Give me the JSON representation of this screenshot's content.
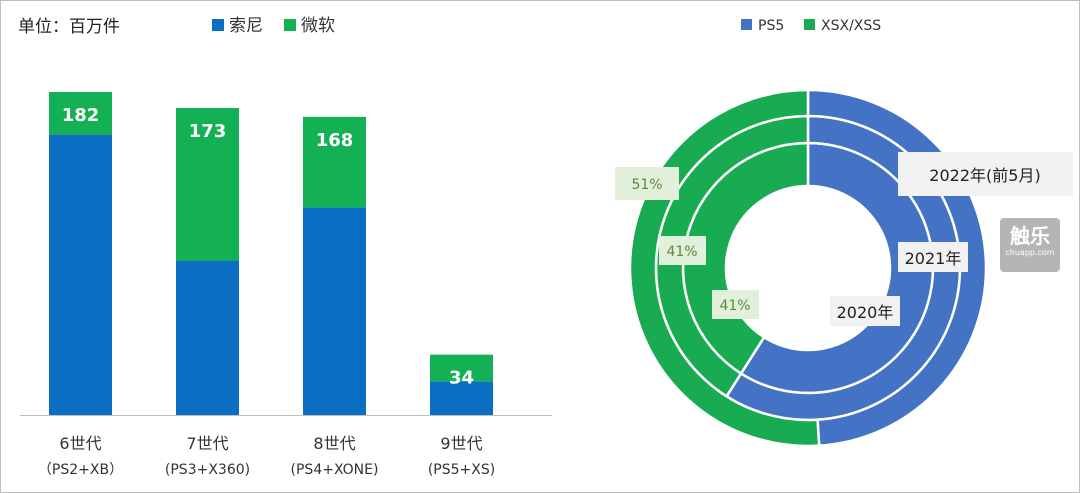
{
  "unit_label": "单位：百万件",
  "colors": {
    "sony": "#0a6fc2",
    "microsoft": "#13b153",
    "ps5": "#4472c4",
    "xsx": "#18ab52"
  },
  "chart_data": [
    {
      "type": "bar",
      "stacked": true,
      "categories": [
        {
          "name": "6世代",
          "sub": "（PS2+XB）"
        },
        {
          "name": "7世代",
          "sub": "(PS3+X360)"
        },
        {
          "name": "8世代",
          "sub": "(PS4+XONE)"
        },
        {
          "name": "9世代",
          "sub": "(PS5+XS)"
        }
      ],
      "totals": [
        182,
        173,
        168,
        34
      ],
      "series": [
        {
          "name": "索尼",
          "values": [
            158,
            87,
            117,
            19
          ],
          "color": "#0a6fc2"
        },
        {
          "name": "微软",
          "values": [
            24,
            86,
            51,
            15
          ],
          "color": "#13b153"
        }
      ],
      "ylim": [
        0,
        182
      ],
      "legend": "top"
    },
    {
      "type": "pie",
      "variant": "multi-ring donut",
      "series_names": [
        "PS5",
        "XSX/XSS"
      ],
      "rings": [
        {
          "label": "2020年",
          "values": [
            59,
            41
          ],
          "xsx_label": "41%"
        },
        {
          "label": "2021年",
          "values": [
            59,
            41
          ],
          "xsx_label": "41%"
        },
        {
          "label": "2022年(前5月)",
          "values": [
            49,
            51
          ],
          "xsx_label": "51%"
        }
      ],
      "legend": "top"
    }
  ],
  "watermark": {
    "main": "触乐",
    "sub": "chuapp.com"
  }
}
